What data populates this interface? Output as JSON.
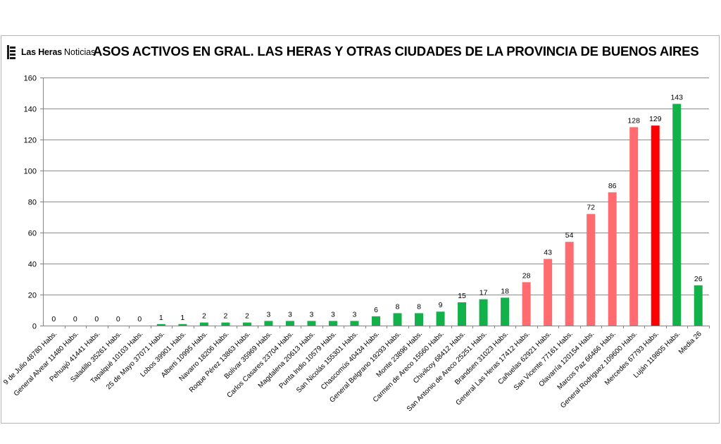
{
  "brand": {
    "name": "Las Heras",
    "sub": "Noticias"
  },
  "chart_data": {
    "type": "bar",
    "title": "ASOS ACTIVOS EN GRAL. LAS HERAS Y OTRAS CIUDADES DE LA PROVINCIA DE BUENOS AIRES",
    "xlabel": "",
    "ylabel": "",
    "ylim": [
      0,
      160
    ],
    "yticks": [
      0,
      20,
      40,
      60,
      80,
      100,
      120,
      140,
      160
    ],
    "grid": true,
    "legend": "none",
    "colors": {
      "green": "#12b14a",
      "salmon": "#ff6b6f",
      "red": "#ff0000"
    },
    "categories": [
      "9 de Julio 48780 Habs.",
      "General Alvear 11480 Habs.",
      "Pehuajó 41441 Habs.",
      "Saladillo 35261 Habs.",
      "Tapalqué 10103 Habs.",
      "25 de Mayo 37071 Habs.",
      "Lobos 39901 Habs.",
      "Alberti 10995 Habs.",
      "Navarro 18206 Habs.",
      "Roque Pérez 13863 Habs.",
      "Bolívar 35969 Habs.",
      "Carlos Casares 23704 Habs.",
      "Magdalena 20613 Habs.",
      "Punta Indio 10579 Habs.",
      "San Nicolás 155301 Habs.",
      "Chascomús 40434 Habs.",
      "General Belgrano 19293 Habs.",
      "Monte 23896 Habs.",
      "Carmen de Areco 15560 Habs.",
      "Chivilcoy 68412 Habs.",
      "San Antonio de Areco 25251 Habs.",
      "Brandsen 31023 Habs.",
      "General Las Heras 17412 Habs.",
      "Cañuelas 62921 Habs.",
      "San Vicente 77161 Habs.",
      "Olavarría 120154 Habs.",
      "Marcos Paz 66466 Habs.",
      "General Rodriguez 109600 Habs.",
      "Mercedes 67793 Habs.",
      "Luján 119805 Habs.",
      "Media 26"
    ],
    "values": [
      0,
      0,
      0,
      0,
      0,
      1,
      1,
      2,
      2,
      2,
      3,
      3,
      3,
      3,
      3,
      6,
      8,
      8,
      9,
      15,
      17,
      18,
      28,
      43,
      54,
      72,
      86,
      128,
      129,
      143,
      26
    ],
    "bar_colors": [
      "green",
      "green",
      "green",
      "green",
      "green",
      "green",
      "green",
      "green",
      "green",
      "green",
      "green",
      "green",
      "green",
      "green",
      "green",
      "green",
      "green",
      "green",
      "green",
      "green",
      "green",
      "green",
      "salmon",
      "salmon",
      "salmon",
      "salmon",
      "salmon",
      "salmon",
      "red",
      "green",
      "green"
    ],
    "data_labels": [
      "0",
      "0",
      "0",
      "0",
      "0",
      "1",
      "1",
      "2",
      "2",
      "2",
      "3",
      "3",
      "3",
      "3",
      "3",
      "6",
      "8",
      "8",
      "9",
      "15",
      "17",
      "18",
      "28",
      "43",
      "54",
      "72",
      "86",
      "128",
      "129",
      "143",
      "26"
    ]
  }
}
